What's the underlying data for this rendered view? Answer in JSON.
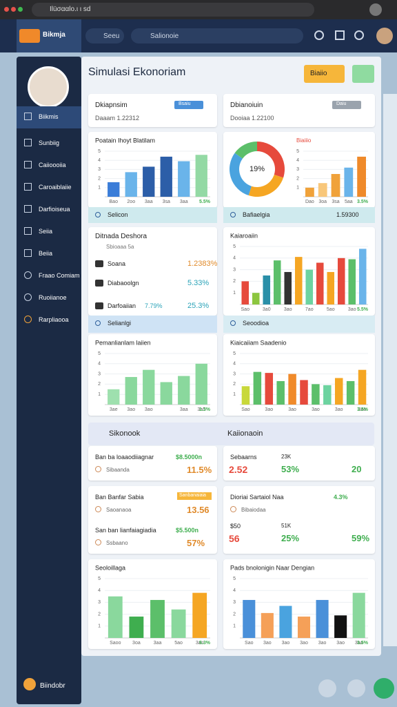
{
  "browser": {
    "url": "Ilüσααlo.ι ι sd"
  },
  "header": {
    "brand": "Bikmja",
    "search_primary": "Seeu",
    "search_secondary": "Salionoie"
  },
  "sidebar": {
    "items": [
      "Biikmis",
      "Sunbiig",
      "Caiioooiia",
      "Caroaiblaiie",
      "Darfioiseua",
      "Seiia",
      "Beiia",
      "Fraao Comiam",
      "Ruoiianoe",
      "Rarpliaooa"
    ],
    "footer": "Biindobr"
  },
  "main": {
    "title": "Simulasi Ekonoriam",
    "action": "Biaiio"
  },
  "summary": [
    {
      "title": "Dkiapnsim",
      "badge": "Bsaiu",
      "subtitle": "Daaam 1.22312"
    },
    {
      "title": "Dbianoiuin",
      "badge": "Daiu",
      "subtitle": "Dooiaa 1.22100"
    }
  ],
  "strips": [
    {
      "label": "Selicon"
    },
    {
      "label": "Bafiaelgia",
      "value": "1.59300"
    },
    {
      "label": "Selianlgi"
    },
    {
      "label": "Seoodioa"
    }
  ],
  "list_card": {
    "title": "Ditnada Deshora",
    "subtitle": "Sbioaaa 5a",
    "items": [
      {
        "name": "Soana",
        "value": "1.2383%"
      },
      {
        "name": "Diabaoolgn",
        "value": "5.33%"
      },
      {
        "name": "Darfoaiian",
        "note": "7.79%",
        "value": "25.3%"
      }
    ]
  },
  "section": {
    "left": "Sikonook",
    "right": "Kaiionaoin"
  },
  "kpis": [
    {
      "title": "Ban ba loaaodiiagnar",
      "amount": "$8.5000n",
      "note": "Sibaanda",
      "value": "11.5%"
    },
    {
      "title": "Sebaarns",
      "amount": "23K",
      "value": "2.52",
      "value2": "53%",
      "value3": "20"
    },
    {
      "title": "Ban Banfar Sabia",
      "badge": "Sanbanaiaia",
      "note": "Saoanaoa",
      "value": "13.56"
    },
    {
      "title": "Dioriai Sartaiol Naa",
      "note": "Bibaiodaa",
      "amount": "4.3%"
    },
    {
      "title": "San ban lianfaiagiadia",
      "amount": "$5.500n",
      "note": "Ssbaano",
      "value": "57%"
    },
    {
      "title": "$50",
      "amount": "51K",
      "value": "56",
      "value2": "25%",
      "value3": "59%"
    }
  ],
  "chart_data": [
    {
      "type": "bar",
      "title": "Poatain Ihoyt Blatilam",
      "ylim": [
        0,
        5
      ],
      "yticks": [
        1,
        2,
        3,
        4,
        5
      ],
      "categories": [
        "Bao",
        "2oo",
        "3aa",
        "3sa",
        "3aa",
        null
      ],
      "values": [
        1.6,
        2.7,
        3.3,
        4.4,
        3.9,
        4.6
      ],
      "colors": [
        "#3b7dd8",
        "#6ab4ea",
        "#2c5ea8",
        "#2c5ea8",
        "#6ab4ea",
        "#93d9a4"
      ],
      "note": "5.5%"
    },
    {
      "type": "pie",
      "title": "Biaiiio",
      "center_label": "19%",
      "values": [
        30,
        25,
        30,
        15
      ],
      "colors": [
        "#e64a3c",
        "#f5a623",
        "#4aa3df",
        "#5cbf6a"
      ]
    },
    {
      "type": "bar",
      "ylim": [
        0,
        5
      ],
      "yticks": [
        1,
        2,
        3,
        4,
        5
      ],
      "categories": [
        "Dao",
        "3oa",
        "3sa",
        "5aa",
        null
      ],
      "values": [
        1,
        1.5,
        2.5,
        3.2,
        4.4
      ],
      "colors": [
        "#f0a23a",
        "#f8c77a",
        "#f0a23a",
        "#6ab4ea",
        "#ef8a2a"
      ],
      "note": "3.5%"
    },
    {
      "type": "bar",
      "title": "Kaiaroaiin",
      "ylim": [
        0,
        5
      ],
      "yticks": [
        1,
        2,
        3,
        4,
        5
      ],
      "categories": [
        "Sao",
        null,
        "3a0",
        null,
        "3ao",
        null,
        "7ao",
        null,
        "5ao",
        null,
        "3ao",
        null
      ],
      "values": [
        2,
        1,
        2.5,
        3.8,
        2.8,
        4.1,
        3,
        3.6,
        2.8,
        4,
        3.9,
        4.8
      ],
      "colors": [
        "#e64a3c",
        "#8cc63f",
        "#2a8fa8",
        "#5cbf6a",
        "#333333",
        "#f5a623",
        "#6dd3a0",
        "#e64a3c",
        "#f5a623",
        "#e64a3c",
        "#5cbf6a",
        "#6ab4ea"
      ],
      "note": "5.5%"
    },
    {
      "type": "bar",
      "title": "Pemanlianlam laiien",
      "ylim": [
        0,
        5
      ],
      "yticks": [
        1,
        2,
        3,
        4,
        5
      ],
      "categories": [
        "3ae",
        "3ao",
        "3ao",
        null,
        "3aa",
        "3a5"
      ],
      "values": [
        1.5,
        2.7,
        3.4,
        2.2,
        2.8,
        4
      ],
      "colors": [
        "#9ee0ae",
        "#8ad89d",
        "#8ad89d",
        "#8ad89d",
        "#8ad89d",
        "#8ad89d"
      ],
      "note": "1.3%"
    },
    {
      "type": "bar",
      "title": "Kiaicaiiam Saadenio",
      "ylim": [
        0,
        5
      ],
      "yticks": [
        1,
        2,
        3,
        4,
        5
      ],
      "categories": [
        "Sao",
        null,
        "3ao",
        null,
        "3ao",
        null,
        "3ao",
        null,
        "3ao",
        null,
        "3ao"
      ],
      "values": [
        1.8,
        3.2,
        3.1,
        2.3,
        3,
        2.4,
        2,
        1.9,
        2.6,
        2.3,
        3.4
      ],
      "colors": [
        "#c8d83a",
        "#5cbf6a",
        "#e64a3c",
        "#5cbf6a",
        "#f08a2a",
        "#e64a3c",
        "#5cbf6a",
        "#6dd3a0",
        "#f5a623",
        "#5cbf6a",
        "#f5a623"
      ],
      "note": "3.5%"
    },
    {
      "type": "bar",
      "title": "Seoloillaga",
      "ylim": [
        0,
        5
      ],
      "yticks": [
        1,
        2,
        3,
        4,
        5
      ],
      "categories": [
        "Saoo",
        "3oa",
        "3aa",
        "5ao",
        "3ao"
      ],
      "values": [
        3.5,
        1.8,
        3.2,
        2.4,
        3.8
      ],
      "colors": [
        "#8ad89d",
        "#3fae4f",
        "#5cbf6a",
        "#8ad89d",
        "#f5a623"
      ],
      "note": "5.3%"
    },
    {
      "type": "bar",
      "title": "Pads bnolonigin Naar Dengian",
      "ylim": [
        0,
        5
      ],
      "yticks": [
        1,
        2,
        3,
        4,
        5
      ],
      "categories": [
        "Sao",
        "3ao",
        "3ao",
        "3ao",
        "3ao",
        "3ao",
        "3ao"
      ],
      "values": [
        3.2,
        2.1,
        2.7,
        1.8,
        3.2,
        1.9,
        3.8
      ],
      "colors": [
        "#4a90d9",
        "#f5a058",
        "#4aa3df",
        "#f5a058",
        "#4a90d9",
        "#111111",
        "#8ad89d"
      ],
      "note": "3.5%"
    }
  ]
}
